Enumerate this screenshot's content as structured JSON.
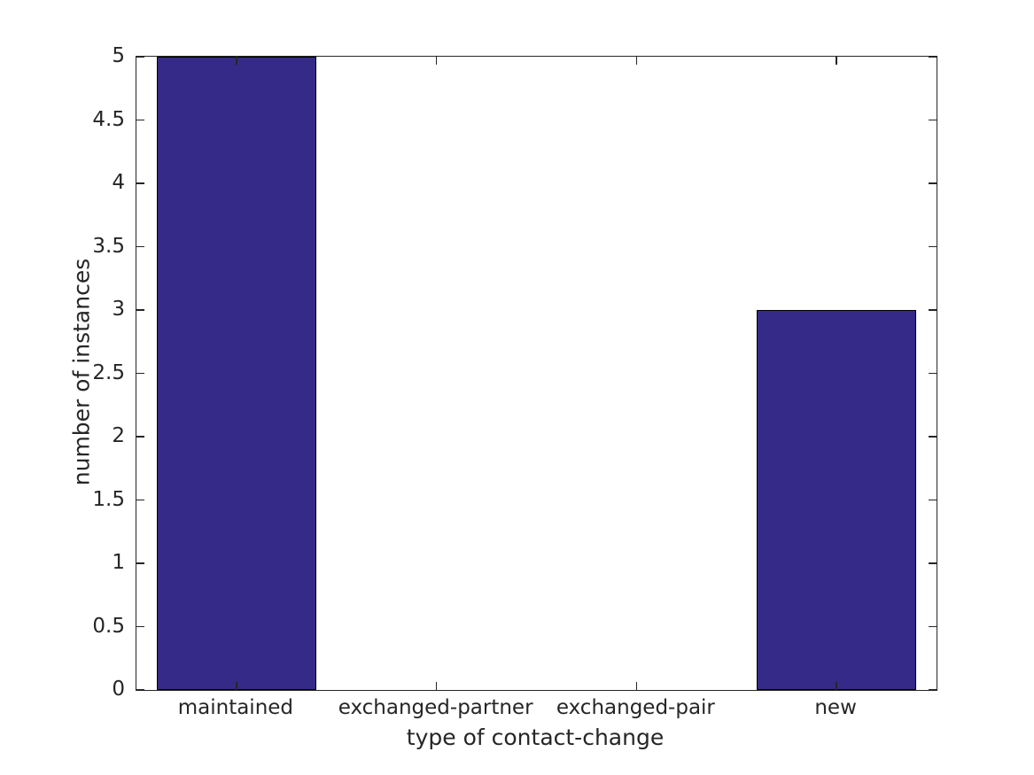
{
  "figure": {
    "background_color": "#ffffff",
    "title": ""
  },
  "chart_data": {
    "type": "bar",
    "categories": [
      "maintained",
      "exchanged-partner",
      "exchanged-pair",
      "new"
    ],
    "values": [
      5,
      0,
      0,
      3
    ],
    "title": "",
    "xlabel": "type of contact-change",
    "ylabel": "number of instances",
    "ylim": [
      0,
      5
    ],
    "yticks": [
      0,
      0.5,
      1,
      1.5,
      2,
      2.5,
      3,
      3.5,
      4,
      4.5,
      5
    ],
    "ytick_labels": [
      "0",
      "0.5",
      "1",
      "1.5",
      "2",
      "2.5",
      "3",
      "3.5",
      "4",
      "4.5",
      "5"
    ],
    "bar_width_fraction": 0.8,
    "bar_color": "#352a87",
    "bar_edge_color": "#000000",
    "axis_color": "#262626",
    "text_color": "#262626",
    "grid": false,
    "legend": null,
    "box": true,
    "tick_direction": "in"
  }
}
